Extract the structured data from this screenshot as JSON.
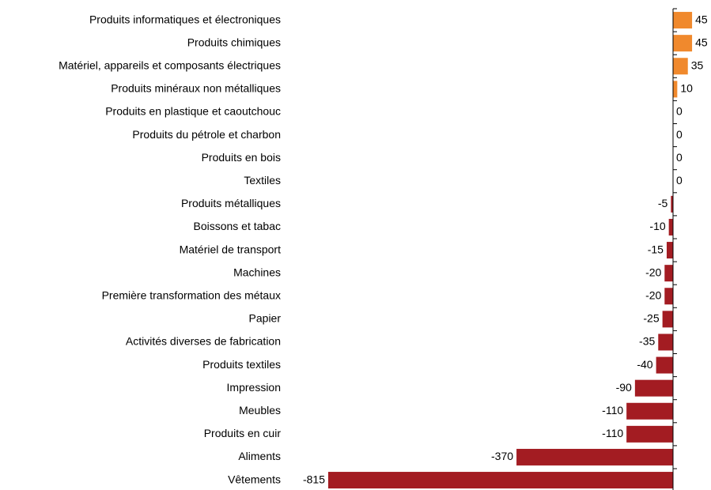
{
  "chart_data": {
    "type": "bar",
    "orientation": "horizontal",
    "categories": [
      "Produits informatiques et électroniques",
      "Produits chimiques",
      "Matériel, appareils et composants électriques",
      "Produits minéraux non métalliques",
      "Produits en plastique et caoutchouc",
      "Produits du pétrole et charbon",
      "Produits en bois",
      "Textiles",
      "Produits métalliques",
      "Boissons et tabac",
      "Matériel de transport",
      "Machines",
      "Première transformation des métaux",
      "Papier",
      "Activités diverses de fabrication",
      "Produits textiles",
      "Impression",
      "Meubles",
      "Produits en cuir",
      "Aliments",
      "Vêtements"
    ],
    "values": [
      45,
      45,
      35,
      10,
      0,
      0,
      0,
      0,
      -5,
      -10,
      -15,
      -20,
      -20,
      -25,
      -35,
      -40,
      -90,
      -110,
      -110,
      -370,
      -815
    ],
    "positive_color": "#f0892d",
    "negative_color": "#a31c22",
    "grid": false
  }
}
